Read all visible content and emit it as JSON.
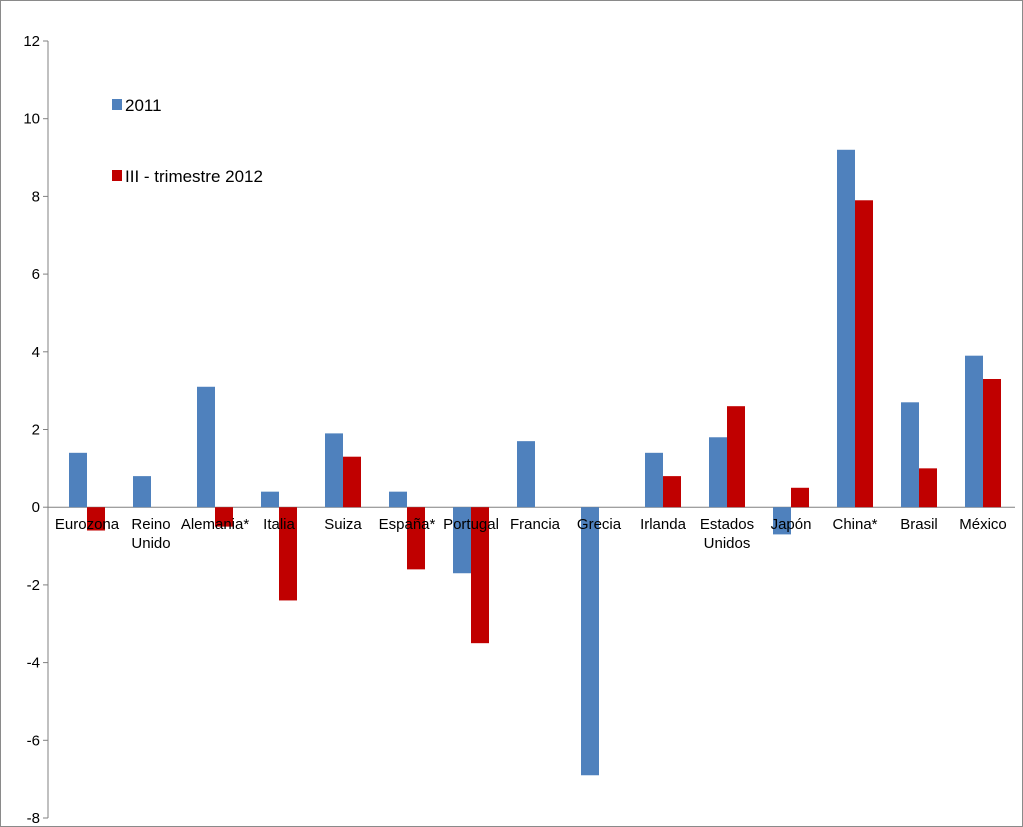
{
  "chart_data": {
    "type": "bar",
    "title": "",
    "xlabel": "",
    "ylabel": "",
    "ylim": [
      -8,
      12
    ],
    "yticks": [
      -8,
      -6,
      -4,
      -2,
      0,
      2,
      4,
      6,
      8,
      10,
      12
    ],
    "grid": false,
    "legend_position": "top-left",
    "categories": [
      [
        "Eurozona"
      ],
      [
        "Reino",
        "Unido"
      ],
      [
        "Alemania*"
      ],
      [
        "Italia"
      ],
      [
        "Suiza"
      ],
      [
        "España*"
      ],
      [
        "Portugal"
      ],
      [
        "Francia"
      ],
      [
        "Grecia"
      ],
      [
        "Irlanda"
      ],
      [
        "Estados",
        "Unidos"
      ],
      [
        "Japón"
      ],
      [
        "China*"
      ],
      [
        "Brasil"
      ],
      [
        "México"
      ]
    ],
    "series": [
      {
        "name": "2011",
        "color": "#4f81bd",
        "values": [
          1.4,
          0.8,
          3.1,
          0.4,
          1.9,
          0.4,
          -1.7,
          1.7,
          -6.9,
          1.4,
          1.8,
          -0.7,
          9.2,
          2.7,
          3.9
        ]
      },
      {
        "name": "III - trimestre 2012",
        "color": "#c00000",
        "values": [
          -0.6,
          null,
          -0.5,
          -2.4,
          1.3,
          -1.6,
          -3.5,
          null,
          null,
          0.8,
          2.6,
          0.5,
          7.9,
          1.0,
          3.3
        ]
      }
    ]
  }
}
